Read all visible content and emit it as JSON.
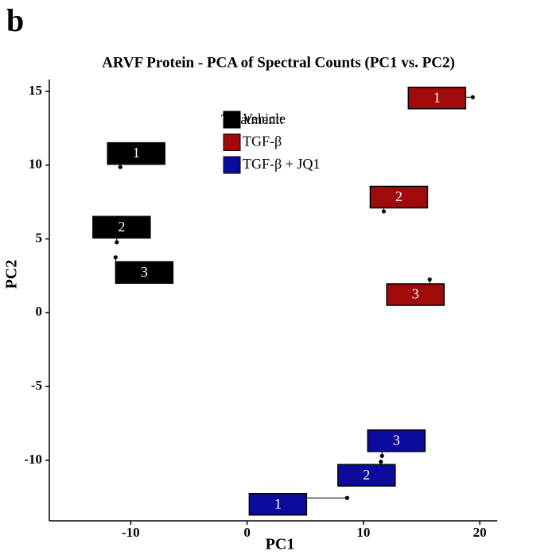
{
  "chart_data": {
    "type": "scatter",
    "panel_label": "b",
    "title": "ARVF Protein - PCA of Spectral Counts (PC1 vs. PC2)",
    "x_label": "PC1",
    "y_label": "PC2",
    "legend_title": "Treatment:",
    "xlim": [
      -17,
      21.5
    ],
    "ylim": [
      -14.1,
      15.8
    ],
    "xticks": [
      -10,
      0,
      10,
      20
    ],
    "yticks": [
      -10,
      -5,
      0,
      5,
      10,
      15
    ],
    "series": [
      {
        "name": "Vehicle",
        "color": "#000000",
        "labels": [
          "1",
          "2",
          "3"
        ],
        "x": [
          -10.9,
          -11.2,
          -11.3
        ],
        "values": [
          9.87,
          4.77,
          3.75
        ]
      },
      {
        "name": "TGF-β",
        "color": "#a00a0a",
        "labels": [
          "1",
          "2",
          "3"
        ],
        "x": [
          19.4,
          11.75,
          15.7
        ],
        "values": [
          14.6,
          6.86,
          2.25
        ]
      },
      {
        "name": "TGF-β + JQ1",
        "color": "#0c0c9c",
        "labels": [
          "1",
          "2",
          "3"
        ],
        "x": [
          8.6,
          11.5,
          11.6
        ],
        "values": [
          -12.55,
          -10.1,
          -9.7
        ]
      }
    ]
  }
}
